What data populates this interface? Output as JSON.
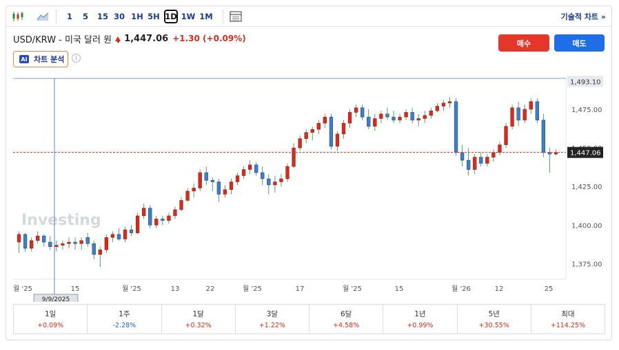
{
  "toolbar": {
    "chart_types": [
      "candlestick-icon",
      "area-chart-icon"
    ],
    "intervals": [
      "1",
      "5",
      "15",
      "30",
      "1H",
      "5H",
      "1D",
      "1W",
      "1M"
    ],
    "active_interval": "1D",
    "right_link": "기술적 차트 »"
  },
  "header": {
    "pair": "USD/KRW - 미국 달러 원",
    "price": "1,447.06",
    "change": "+1.30 (+0.09%)",
    "ai_badge": "AI",
    "ai_label": "차트 분석",
    "info": "i",
    "buy": "매수",
    "sell": "매도"
  },
  "colors": {
    "up": "#d62c1e",
    "down": "#3f7ec8",
    "buy": "#e5362a",
    "sell": "#1f6ee8"
  },
  "chart": {
    "y_ticks": [
      "1,475.00",
      "1,450.00",
      "1,425.00",
      "1,400.00",
      "1,375.00"
    ],
    "x_ticks": [
      "월 '25",
      "15",
      "월 '25",
      "13",
      "22",
      "월 '25",
      "17",
      "월 '25",
      "15",
      "월 '26",
      "12",
      "25"
    ],
    "cursor_date": "9/9/2025",
    "crosshair_price": "1,493.10",
    "last_price": "1,447.06",
    "watermark": "Investing"
  },
  "chart_data": {
    "type": "candlestick",
    "ylim": [
      1365,
      1495
    ],
    "candles": [
      [
        1389,
        1396,
        1382,
        1394
      ],
      [
        1394,
        1395,
        1383,
        1385
      ],
      [
        1385,
        1392,
        1383,
        1390
      ],
      [
        1390,
        1396,
        1388,
        1393
      ],
      [
        1393,
        1394,
        1386,
        1389
      ],
      [
        1389,
        1393,
        1384,
        1386
      ],
      [
        1386,
        1390,
        1383,
        1387
      ],
      [
        1387,
        1390,
        1384,
        1388
      ],
      [
        1388,
        1392,
        1385,
        1389
      ],
      [
        1389,
        1392,
        1384,
        1388
      ],
      [
        1388,
        1392,
        1384,
        1390
      ],
      [
        1392,
        1395,
        1386,
        1388
      ],
      [
        1388,
        1390,
        1378,
        1381
      ],
      [
        1381,
        1386,
        1373,
        1384
      ],
      [
        1384,
        1394,
        1382,
        1392
      ],
      [
        1392,
        1396,
        1389,
        1394
      ],
      [
        1394,
        1398,
        1390,
        1391
      ],
      [
        1391,
        1399,
        1389,
        1397
      ],
      [
        1397,
        1400,
        1393,
        1395
      ],
      [
        1395,
        1408,
        1394,
        1406
      ],
      [
        1406,
        1414,
        1404,
        1411
      ],
      [
        1411,
        1413,
        1398,
        1400
      ],
      [
        1400,
        1406,
        1398,
        1404
      ],
      [
        1404,
        1406,
        1400,
        1403
      ],
      [
        1403,
        1408,
        1401,
        1406
      ],
      [
        1406,
        1412,
        1404,
        1410
      ],
      [
        1410,
        1418,
        1409,
        1416
      ],
      [
        1416,
        1424,
        1415,
        1422
      ],
      [
        1422,
        1427,
        1418,
        1424
      ],
      [
        1424,
        1436,
        1422,
        1434
      ],
      [
        1434,
        1438,
        1426,
        1429
      ],
      [
        1429,
        1431,
        1422,
        1428
      ],
      [
        1428,
        1430,
        1415,
        1420
      ],
      [
        1420,
        1426,
        1418,
        1423
      ],
      [
        1423,
        1430,
        1420,
        1428
      ],
      [
        1428,
        1434,
        1426,
        1432
      ],
      [
        1432,
        1438,
        1430,
        1436
      ],
      [
        1436,
        1442,
        1433,
        1439
      ],
      [
        1439,
        1441,
        1432,
        1434
      ],
      [
        1434,
        1438,
        1426,
        1430
      ],
      [
        1430,
        1433,
        1420,
        1426
      ],
      [
        1426,
        1432,
        1421,
        1428
      ],
      [
        1428,
        1433,
        1425,
        1430
      ],
      [
        1430,
        1440,
        1428,
        1438
      ],
      [
        1438,
        1453,
        1437,
        1450
      ],
      [
        1450,
        1458,
        1448,
        1456
      ],
      [
        1456,
        1462,
        1453,
        1460
      ],
      [
        1460,
        1464,
        1455,
        1462
      ],
      [
        1462,
        1468,
        1459,
        1466
      ],
      [
        1466,
        1472,
        1463,
        1470
      ],
      [
        1470,
        1472,
        1449,
        1451
      ],
      [
        1451,
        1461,
        1448,
        1459
      ],
      [
        1459,
        1468,
        1456,
        1466
      ],
      [
        1466,
        1475,
        1463,
        1473
      ],
      [
        1473,
        1478,
        1470,
        1476
      ],
      [
        1476,
        1478,
        1468,
        1470
      ],
      [
        1470,
        1475,
        1462,
        1464
      ],
      [
        1464,
        1472,
        1461,
        1469
      ],
      [
        1469,
        1474,
        1466,
        1472
      ],
      [
        1472,
        1476,
        1468,
        1470
      ],
      [
        1470,
        1474,
        1466,
        1468
      ],
      [
        1468,
        1472,
        1466,
        1470
      ],
      [
        1470,
        1475,
        1468,
        1473
      ],
      [
        1473,
        1476,
        1466,
        1468
      ],
      [
        1468,
        1472,
        1464,
        1469
      ],
      [
        1469,
        1474,
        1466,
        1471
      ],
      [
        1471,
        1476,
        1469,
        1474
      ],
      [
        1474,
        1479,
        1473,
        1477
      ],
      [
        1477,
        1481,
        1474,
        1479
      ],
      [
        1479,
        1483,
        1476,
        1480
      ],
      [
        1480,
        1482,
        1445,
        1447
      ],
      [
        1447,
        1452,
        1438,
        1442
      ],
      [
        1442,
        1450,
        1432,
        1436
      ],
      [
        1436,
        1446,
        1433,
        1444
      ],
      [
        1444,
        1447,
        1438,
        1440
      ],
      [
        1440,
        1446,
        1438,
        1444
      ],
      [
        1444,
        1449,
        1441,
        1447
      ],
      [
        1447,
        1454,
        1445,
        1452
      ],
      [
        1452,
        1466,
        1450,
        1464
      ],
      [
        1464,
        1478,
        1462,
        1476
      ],
      [
        1476,
        1480,
        1464,
        1468
      ],
      [
        1468,
        1478,
        1466,
        1475
      ],
      [
        1475,
        1482,
        1472,
        1480
      ],
      [
        1480,
        1482,
        1466,
        1468
      ],
      [
        1468,
        1472,
        1444,
        1447
      ],
      [
        1447,
        1450,
        1434,
        1446
      ],
      [
        1446,
        1449,
        1445,
        1447
      ]
    ]
  },
  "performance": [
    {
      "label": "1일",
      "value": "+0.09%",
      "dir": "pos"
    },
    {
      "label": "1주",
      "value": "-2.28%",
      "dir": "neg"
    },
    {
      "label": "1달",
      "value": "+0.32%",
      "dir": "pos"
    },
    {
      "label": "3달",
      "value": "+1.22%",
      "dir": "pos"
    },
    {
      "label": "6달",
      "value": "+4.58%",
      "dir": "pos"
    },
    {
      "label": "1년",
      "value": "+0.99%",
      "dir": "pos"
    },
    {
      "label": "5년",
      "value": "+30.55%",
      "dir": "pos"
    },
    {
      "label": "최대",
      "value": "+114.25%",
      "dir": "pos"
    }
  ]
}
